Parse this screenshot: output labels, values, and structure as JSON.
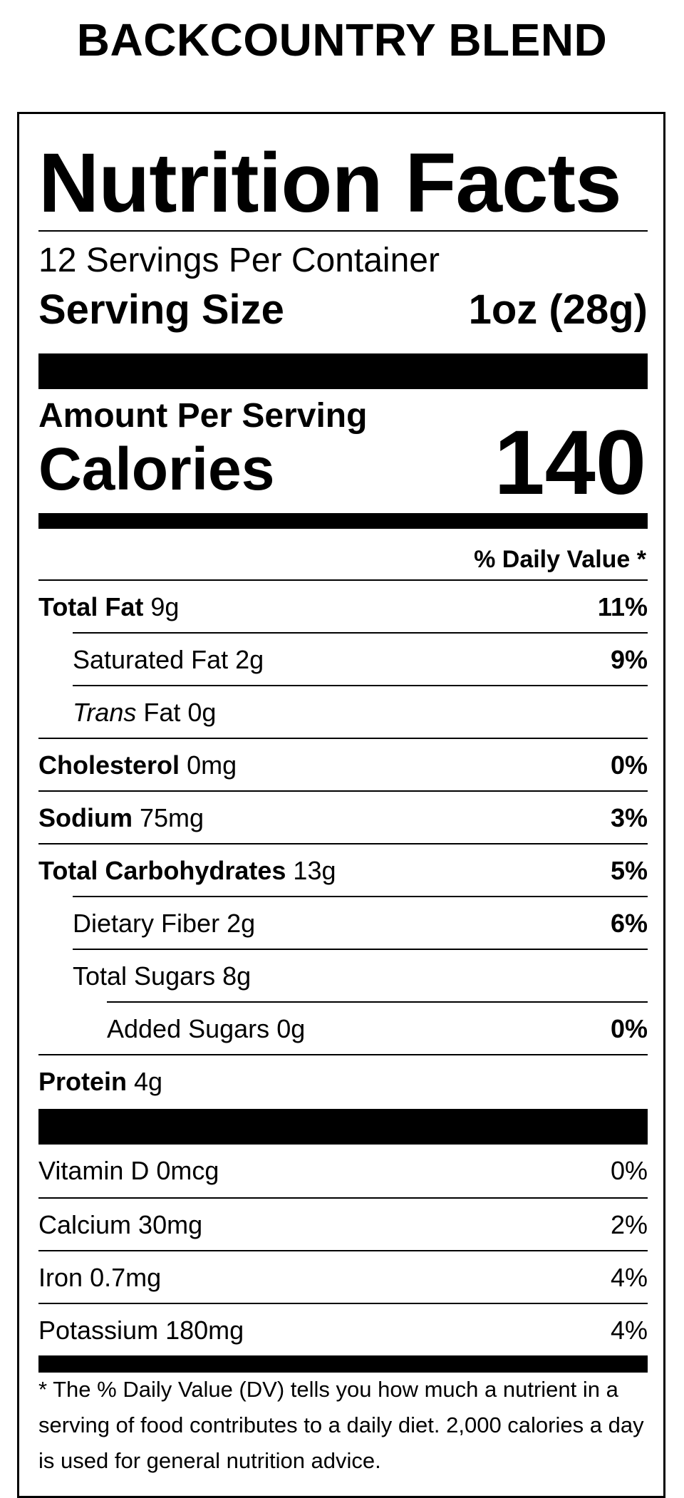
{
  "product": {
    "title": "BACKCOUNTRY BLEND"
  },
  "label": {
    "heading": "Nutrition Facts",
    "servings_per_container": "12 Servings Per Container",
    "serving_size_label": "Serving Size",
    "serving_size_value": "1oz (28g)",
    "amount_per_serving": "Amount Per Serving",
    "calories_label": "Calories",
    "calories_value": "140",
    "daily_value_header": "% Daily Value *"
  },
  "nutrients": [
    {
      "name": "Total Fat",
      "amount": "9g",
      "dv": "11%"
    },
    {
      "name": "Saturated Fat",
      "amount": "2g",
      "dv": "9%"
    },
    {
      "name": "Trans",
      "name_suffix": "Fat",
      "amount": "0g",
      "dv": ""
    },
    {
      "name": "Cholesterol",
      "amount": "0mg",
      "dv": "0%"
    },
    {
      "name": "Sodium",
      "amount": "75mg",
      "dv": "3%"
    },
    {
      "name": "Total Carbohydrates",
      "amount": "13g",
      "dv": "5%"
    },
    {
      "name": "Dietary Fiber",
      "amount": "2g",
      "dv": "6%"
    },
    {
      "name": "Total Sugars",
      "amount": "8g",
      "dv": ""
    },
    {
      "name": "Added Sugars",
      "amount": "0g",
      "dv": "0%"
    },
    {
      "name": "Protein",
      "amount": "4g",
      "dv": ""
    }
  ],
  "vitamins": [
    {
      "name": "Vitamin D",
      "amount": "0mcg",
      "dv": "0%"
    },
    {
      "name": "Calcium",
      "amount": "30mg",
      "dv": "2%"
    },
    {
      "name": "Iron",
      "amount": "0.7mg",
      "dv": "4%"
    },
    {
      "name": "Potassium",
      "amount": "180mg",
      "dv": "4%"
    }
  ],
  "footnote": "* The % Daily Value (DV) tells you how much a nutrient in a serving of food contributes to a daily diet. 2,000 calories a day is used for general nutrition advice."
}
